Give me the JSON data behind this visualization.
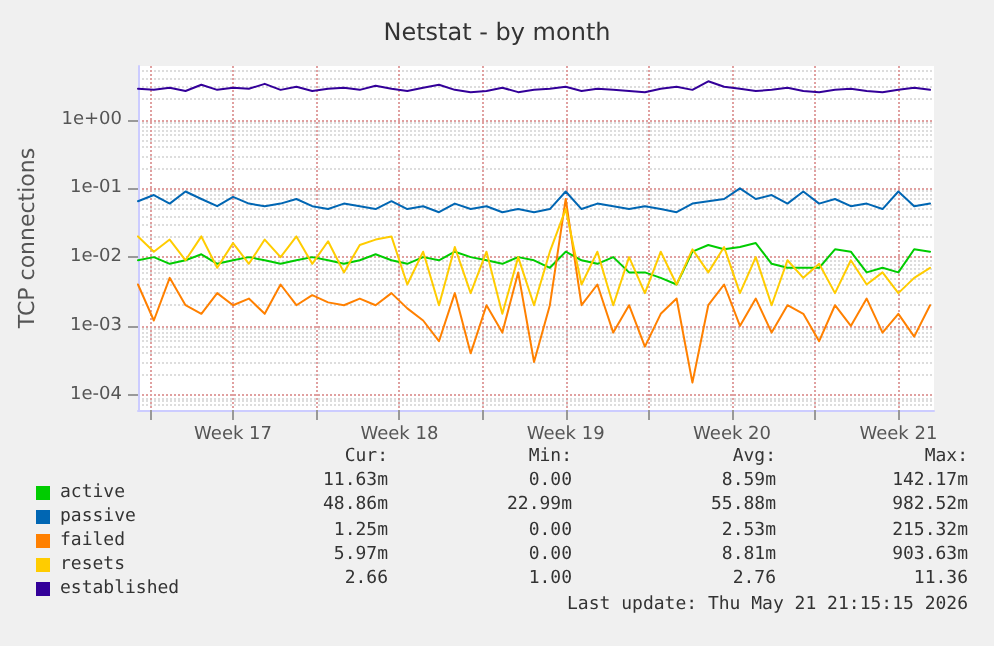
{
  "chart_data": {
    "type": "line",
    "title": "Netstat - by month",
    "ylabel": "TCP connections",
    "x": [
      "2026-04-19T12:00",
      "2026-04-20T04:00",
      "2026-04-20T20:00",
      "2026-04-21T12:00",
      "2026-04-22T04:00",
      "2026-04-22T20:00",
      "2026-04-23T12:00",
      "2026-04-24T04:00",
      "2026-04-24T20:00",
      "2026-04-25T12:00",
      "2026-04-26T04:00",
      "2026-04-26T20:00",
      "2026-04-27T12:00",
      "2026-04-28T04:00",
      "2026-04-28T20:00",
      "2026-04-29T12:00",
      "2026-04-30T04:00",
      "2026-04-30T20:00",
      "2026-05-01T12:00",
      "2026-05-02T04:00",
      "2026-05-02T20:00",
      "2026-05-03T12:00",
      "2026-05-04T04:00",
      "2026-05-04T20:00",
      "2026-05-05T12:00",
      "2026-05-06T04:00",
      "2026-05-06T20:00",
      "2026-05-07T12:00",
      "2026-05-08T04:00",
      "2026-05-08T20:00",
      "2026-05-09T12:00",
      "2026-05-10T04:00",
      "2026-05-10T20:00",
      "2026-05-11T12:00",
      "2026-05-12T04:00",
      "2026-05-12T20:00",
      "2026-05-13T12:00",
      "2026-05-14T04:00",
      "2026-05-14T20:00",
      "2026-05-15T12:00",
      "2026-05-16T04:00",
      "2026-05-16T20:00",
      "2026-05-17T12:00",
      "2026-05-18T04:00",
      "2026-05-18T20:00",
      "2026-05-19T12:00",
      "2026-05-20T04:00",
      "2026-05-20T20:00",
      "2026-05-21T12:00",
      "2026-05-22T04:00",
      "2026-05-22T20:00"
    ],
    "series": [
      {
        "name": "active",
        "color": "#00cc00",
        "values": [
          0.009,
          0.01,
          0.008,
          0.009,
          0.011,
          0.008,
          0.009,
          0.01,
          0.009,
          0.008,
          0.009,
          0.01,
          0.009,
          0.008,
          0.009,
          0.011,
          0.009,
          0.008,
          0.01,
          0.009,
          0.012,
          0.01,
          0.009,
          0.008,
          0.01,
          0.009,
          0.007,
          0.012,
          0.009,
          0.008,
          0.01,
          0.006,
          0.006,
          0.005,
          0.004,
          0.012,
          0.015,
          0.013,
          0.014,
          0.016,
          0.008,
          0.007,
          0.007,
          0.007,
          0.013,
          0.012,
          0.006,
          0.007,
          0.006,
          0.013,
          0.012
        ]
      },
      {
        "name": "passive",
        "color": "#0066b3",
        "values": [
          0.065,
          0.08,
          0.06,
          0.09,
          0.07,
          0.055,
          0.075,
          0.06,
          0.055,
          0.06,
          0.07,
          0.055,
          0.05,
          0.06,
          0.055,
          0.05,
          0.065,
          0.05,
          0.055,
          0.045,
          0.06,
          0.05,
          0.055,
          0.045,
          0.05,
          0.045,
          0.05,
          0.09,
          0.05,
          0.06,
          0.055,
          0.05,
          0.055,
          0.05,
          0.045,
          0.06,
          0.065,
          0.07,
          0.1,
          0.07,
          0.08,
          0.06,
          0.09,
          0.06,
          0.07,
          0.055,
          0.06,
          0.05,
          0.09,
          0.055,
          0.06
        ]
      },
      {
        "name": "failed",
        "color": "#ff8000",
        "values": [
          0.004,
          0.0012,
          0.005,
          0.002,
          0.0015,
          0.003,
          0.002,
          0.0025,
          0.0015,
          0.004,
          0.002,
          0.0028,
          0.0022,
          0.002,
          0.0025,
          0.002,
          0.003,
          0.0018,
          0.0012,
          0.0006,
          0.003,
          0.0004,
          0.002,
          0.0008,
          0.006,
          0.0003,
          0.002,
          0.07,
          0.002,
          0.004,
          0.0008,
          0.002,
          0.0005,
          0.0015,
          0.0025,
          0.00015,
          0.002,
          0.004,
          0.001,
          0.0025,
          0.0008,
          0.002,
          0.0015,
          0.0006,
          0.002,
          0.001,
          0.0025,
          0.0008,
          0.0015,
          0.0007,
          0.002
        ]
      },
      {
        "name": "resets",
        "color": "#ffcc00",
        "values": [
          0.02,
          0.012,
          0.018,
          0.009,
          0.02,
          0.007,
          0.016,
          0.008,
          0.018,
          0.01,
          0.02,
          0.008,
          0.017,
          0.006,
          0.015,
          0.018,
          0.02,
          0.004,
          0.012,
          0.002,
          0.014,
          0.003,
          0.012,
          0.0015,
          0.01,
          0.002,
          0.012,
          0.05,
          0.004,
          0.012,
          0.002,
          0.01,
          0.003,
          0.012,
          0.004,
          0.013,
          0.006,
          0.014,
          0.003,
          0.01,
          0.002,
          0.009,
          0.005,
          0.008,
          0.003,
          0.009,
          0.004,
          0.006,
          0.003,
          0.005,
          0.007
        ]
      },
      {
        "name": "established",
        "color": "#330099",
        "values": [
          2.8,
          2.7,
          2.9,
          2.6,
          3.2,
          2.7,
          2.9,
          2.8,
          3.3,
          2.7,
          3.0,
          2.6,
          2.8,
          2.9,
          2.7,
          3.1,
          2.8,
          2.6,
          2.9,
          3.2,
          2.7,
          2.5,
          2.6,
          2.9,
          2.5,
          2.7,
          2.8,
          3.0,
          2.6,
          2.8,
          2.7,
          2.6,
          2.5,
          2.8,
          3.0,
          2.7,
          3.6,
          3.0,
          2.8,
          2.6,
          2.7,
          2.9,
          2.6,
          2.5,
          2.7,
          2.8,
          2.6,
          2.5,
          2.7,
          2.9,
          2.7
        ]
      }
    ],
    "xlim": [
      "2026-04-19T12:00",
      "2026-05-23T00:00"
    ],
    "xticks": [
      {
        "value": "2026-04-20",
        "label": null
      },
      {
        "value": "2026-04-23T12:00",
        "label": "Week 17"
      },
      {
        "value": "2026-04-27",
        "label": null
      },
      {
        "value": "2026-04-30T12:00",
        "label": "Week 18"
      },
      {
        "value": "2026-05-04",
        "label": null
      },
      {
        "value": "2026-05-07T12:00",
        "label": "Week 19"
      },
      {
        "value": "2026-05-11",
        "label": null
      },
      {
        "value": "2026-05-14T12:00",
        "label": "Week 20"
      },
      {
        "value": "2026-05-18",
        "label": null
      },
      {
        "value": "2026-05-21T12:00",
        "label": "Week 21"
      }
    ],
    "ylim": [
      6e-05,
      6
    ],
    "yticks": [
      {
        "value": 0.0001,
        "label": "1e-04"
      },
      {
        "value": 0.001,
        "label": "1e-03"
      },
      {
        "value": 0.01,
        "label": "1e-02"
      },
      {
        "value": 0.1,
        "label": "1e-01"
      },
      {
        "value": 1,
        "label": "1e+00"
      }
    ],
    "log": "y",
    "grid": true,
    "legend": "bottom left",
    "marker": "none",
    "line_style": "solid",
    "annotations": [
      "Cur:",
      "Min:",
      "Avg:",
      "Max:",
      "11.63m",
      "0.00",
      "8.59m",
      "142.17m",
      "48.86m",
      "22.99m",
      "55.88m",
      "982.52m",
      "1.25m",
      "0.00",
      "2.53m",
      "215.32m",
      "5.97m",
      "0.00",
      "8.81m",
      "903.63m",
      "2.66",
      "1.00",
      "2.76",
      "11.36",
      "Last update: Thu May 21 21:15:15 2026"
    ]
  }
}
